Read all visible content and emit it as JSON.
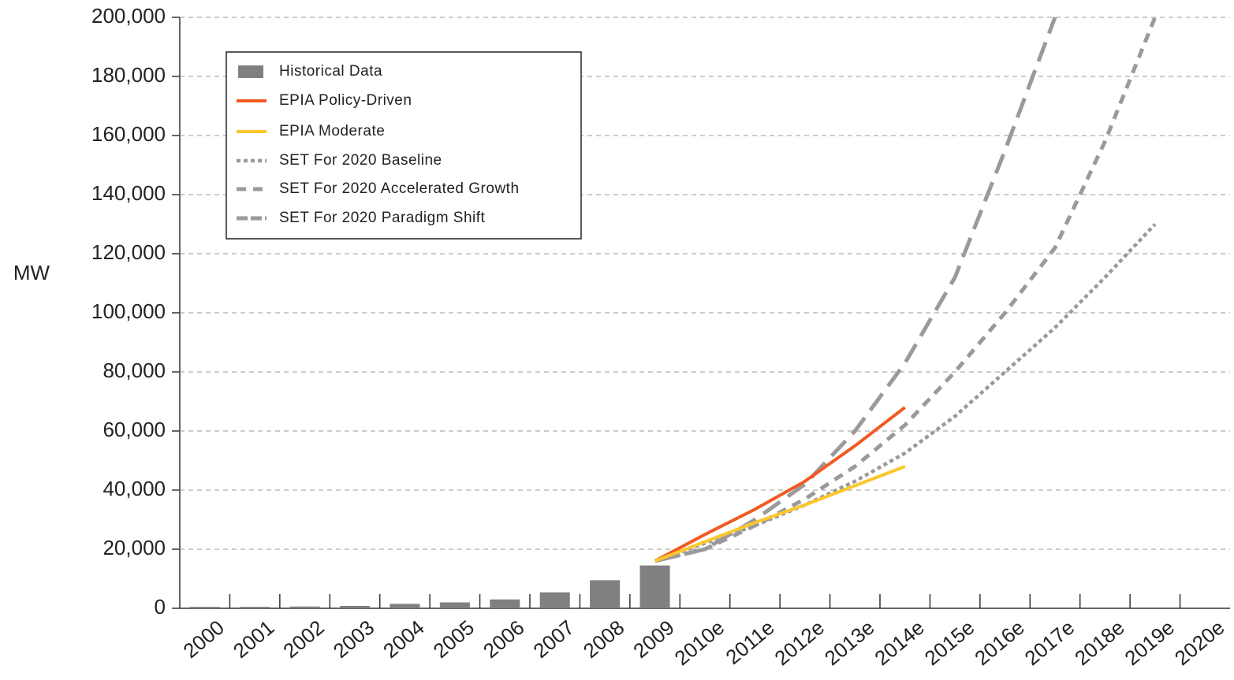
{
  "chart_data": {
    "type": "combo",
    "y_label": "MW",
    "categories": [
      "2000",
      "2001",
      "2002",
      "2003",
      "2004",
      "2005",
      "2006",
      "2007",
      "2008",
      "2009",
      "2010e",
      "2011e",
      "2012e",
      "2013e",
      "2014e",
      "2015e",
      "2016e",
      "2017e",
      "2018e",
      "2019e",
      "2020e"
    ],
    "bars": {
      "name": "Historical Data",
      "color": "#808083",
      "values": [
        500,
        500,
        600,
        800,
        1500,
        2000,
        3000,
        5400,
        9500,
        14500,
        null,
        null,
        null,
        null,
        null,
        null,
        null,
        null,
        null,
        null,
        null
      ]
    },
    "series": [
      {
        "name": "EPIA Policy-Driven",
        "color": "#f05a23",
        "style": "solid",
        "values": [
          null,
          null,
          null,
          null,
          null,
          null,
          null,
          null,
          null,
          16000,
          25000,
          33500,
          43000,
          55000,
          68000,
          null,
          null,
          null,
          null,
          null,
          null
        ]
      },
      {
        "name": "EPIA Moderate",
        "color": "#fbc72b",
        "style": "solid",
        "values": [
          null,
          null,
          null,
          null,
          null,
          null,
          null,
          null,
          null,
          16000,
          22500,
          29000,
          35000,
          41500,
          48000,
          null,
          null,
          null,
          null,
          null,
          null
        ]
      },
      {
        "name": "SET For 2020 Baseline",
        "color": "#9a9a9c",
        "style": "dotted",
        "values": [
          null,
          null,
          null,
          null,
          null,
          null,
          null,
          null,
          null,
          16000,
          22000,
          28000,
          35000,
          43000,
          52500,
          65000,
          80000,
          95000,
          112000,
          130000,
          null
        ]
      },
      {
        "name": "SET For 2020 Accelerated Growth",
        "color": "#9a9a9c",
        "style": "dashed",
        "values": [
          null,
          null,
          null,
          null,
          null,
          null,
          null,
          null,
          null,
          16000,
          20000,
          28000,
          37000,
          48000,
          62000,
          80000,
          100000,
          122000,
          158000,
          200000,
          null
        ]
      },
      {
        "name": "SET For 2020 Paradigm Shift",
        "color": "#9a9a9c",
        "style": "long-dashed",
        "values": [
          null,
          null,
          null,
          null,
          null,
          null,
          null,
          null,
          null,
          16000,
          20000,
          30000,
          42000,
          60000,
          83000,
          112000,
          155000,
          200000,
          null,
          null,
          null
        ]
      }
    ],
    "ylim": [
      0,
      200000
    ],
    "yticks": [
      0,
      {
        "value": 20000,
        "label": "20,000"
      },
      {
        "value": 40000,
        "label": "40,000"
      },
      {
        "value": 60000,
        "label": "60,000"
      },
      {
        "value": 80000,
        "label": "80,000"
      },
      {
        "value": 100000,
        "label": "100,000"
      },
      {
        "value": 120000,
        "label": "120,000"
      },
      {
        "value": 140000,
        "label": "140,000"
      },
      {
        "value": 160000,
        "label": "160,000"
      },
      {
        "value": 180000,
        "label": "180,000"
      },
      {
        "value": 200000,
        "label": "200,000"
      }
    ],
    "grid": true,
    "legend": "upper left"
  }
}
